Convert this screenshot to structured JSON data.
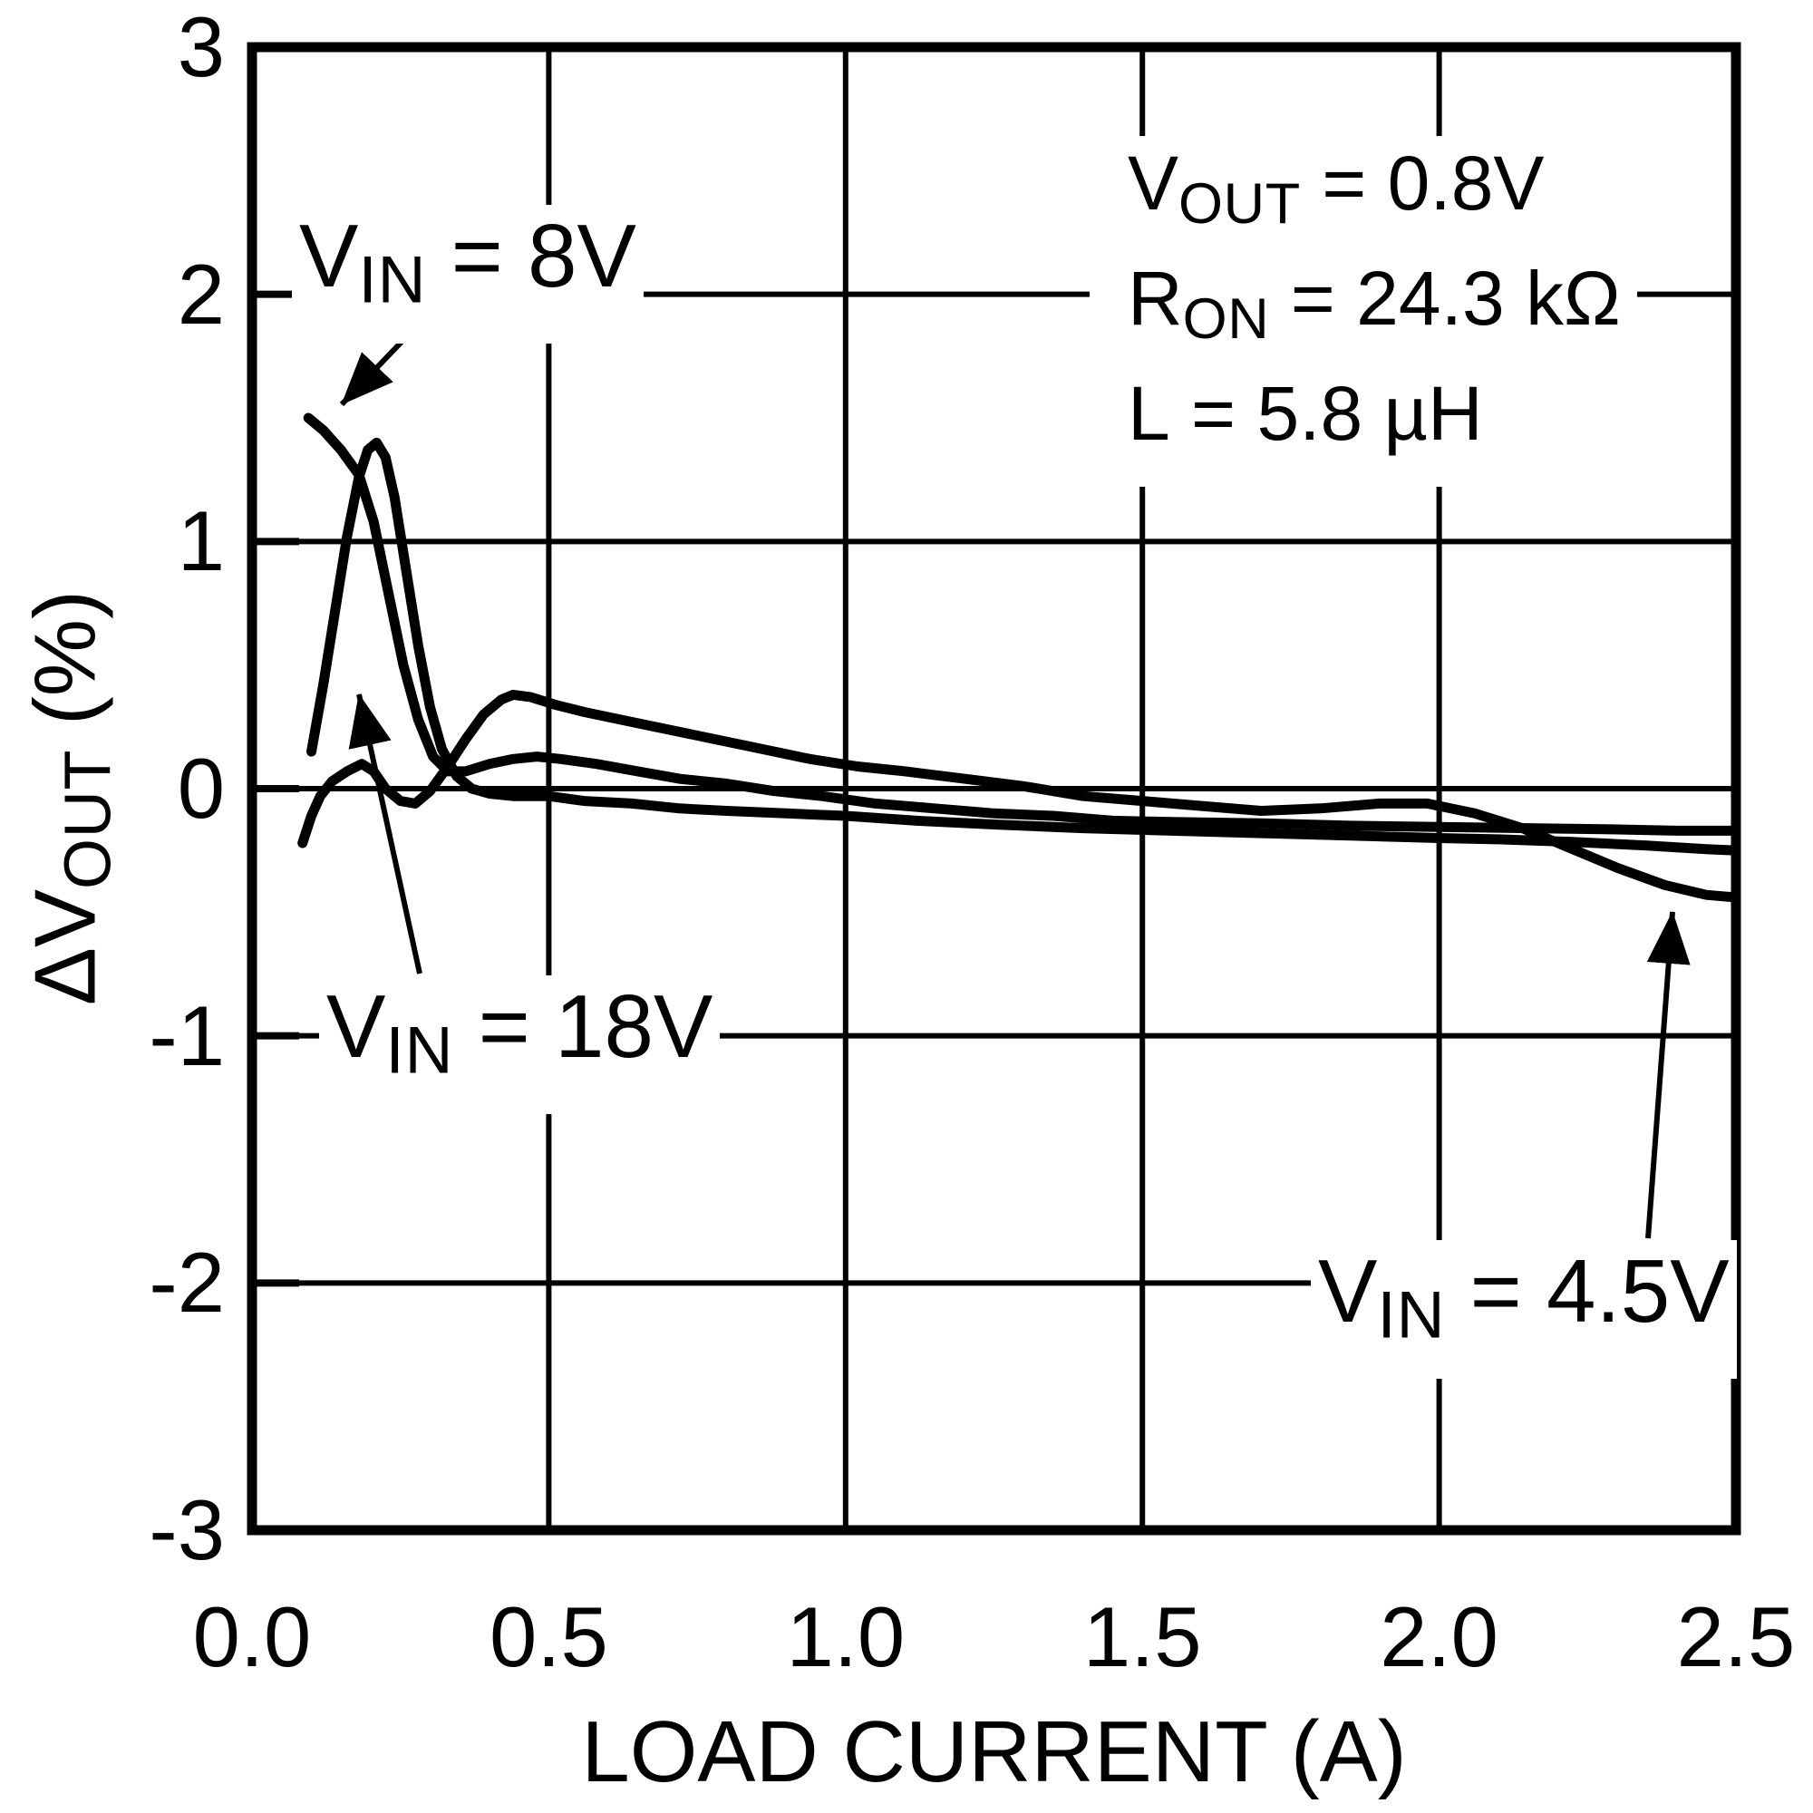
{
  "chart_data": {
    "type": "line",
    "title": "",
    "xlabel": "LOAD CURRENT (A)",
    "ylabel_parts": {
      "base": "ΔV",
      "sub": "OUT",
      "rest": " (%)"
    },
    "xlim": [
      0,
      2.5
    ],
    "ylim": [
      -3,
      3
    ],
    "xticks": [
      "0.0",
      "0.5",
      "1.0",
      "1.5",
      "2.0",
      "2.5"
    ],
    "yticks": [
      "3",
      "2",
      "1",
      "0",
      "-1",
      "-2",
      "-3"
    ],
    "grid": true,
    "legend_position": "none",
    "line_color": "#000000",
    "series": [
      {
        "id": "vin-8v",
        "name": "VIN = 8V",
        "points": [
          [
            0.095,
            1.5
          ],
          [
            0.12,
            1.45
          ],
          [
            0.15,
            1.37
          ],
          [
            0.18,
            1.27
          ],
          [
            0.205,
            1.08
          ],
          [
            0.23,
            0.79
          ],
          [
            0.255,
            0.5
          ],
          [
            0.28,
            0.28
          ],
          [
            0.305,
            0.13
          ],
          [
            0.33,
            0.07
          ],
          [
            0.36,
            0.07
          ],
          [
            0.4,
            0.1
          ],
          [
            0.44,
            0.12
          ],
          [
            0.48,
            0.13
          ],
          [
            0.52,
            0.12
          ],
          [
            0.58,
            0.1
          ],
          [
            0.65,
            0.07
          ],
          [
            0.72,
            0.04
          ],
          [
            0.8,
            0.02
          ],
          [
            0.88,
            -0.01
          ],
          [
            0.96,
            -0.03
          ],
          [
            1.05,
            -0.06
          ],
          [
            1.15,
            -0.08
          ],
          [
            1.25,
            -0.1
          ],
          [
            1.35,
            -0.11
          ],
          [
            1.45,
            -0.13
          ],
          [
            1.55,
            -0.135
          ],
          [
            1.7,
            -0.14
          ],
          [
            1.85,
            -0.15
          ],
          [
            2.0,
            -0.155
          ],
          [
            2.15,
            -0.16
          ],
          [
            2.3,
            -0.165
          ],
          [
            2.4,
            -0.17
          ],
          [
            2.5,
            -0.17
          ]
        ]
      },
      {
        "id": "vin-18v",
        "name": "VIN = 18V",
        "points": [
          [
            0.1,
            0.15
          ],
          [
            0.12,
            0.42
          ],
          [
            0.14,
            0.72
          ],
          [
            0.16,
            1.02
          ],
          [
            0.18,
            1.26
          ],
          [
            0.195,
            1.37
          ],
          [
            0.21,
            1.4
          ],
          [
            0.225,
            1.34
          ],
          [
            0.24,
            1.18
          ],
          [
            0.26,
            0.88
          ],
          [
            0.28,
            0.58
          ],
          [
            0.3,
            0.33
          ],
          [
            0.32,
            0.16
          ],
          [
            0.345,
            0.05
          ],
          [
            0.37,
            0.0
          ],
          [
            0.4,
            -0.02
          ],
          [
            0.44,
            -0.03
          ],
          [
            0.5,
            -0.03
          ],
          [
            0.56,
            -0.05
          ],
          [
            0.64,
            -0.06
          ],
          [
            0.72,
            -0.08
          ],
          [
            0.8,
            -0.09
          ],
          [
            0.9,
            -0.1
          ],
          [
            1.0,
            -0.11
          ],
          [
            1.12,
            -0.13
          ],
          [
            1.25,
            -0.145
          ],
          [
            1.4,
            -0.16
          ],
          [
            1.55,
            -0.17
          ],
          [
            1.7,
            -0.18
          ],
          [
            1.85,
            -0.19
          ],
          [
            2.0,
            -0.2
          ],
          [
            2.1,
            -0.205
          ],
          [
            2.22,
            -0.215
          ],
          [
            2.35,
            -0.23
          ],
          [
            2.45,
            -0.245
          ],
          [
            2.5,
            -0.25
          ]
        ]
      },
      {
        "id": "vin-4-5v",
        "name": "VIN = 4.5V",
        "points": [
          [
            0.085,
            -0.22
          ],
          [
            0.1,
            -0.11
          ],
          [
            0.115,
            -0.03
          ],
          [
            0.135,
            0.03
          ],
          [
            0.16,
            0.07
          ],
          [
            0.185,
            0.1
          ],
          [
            0.205,
            0.07
          ],
          [
            0.225,
            0.0
          ],
          [
            0.25,
            -0.05
          ],
          [
            0.275,
            -0.06
          ],
          [
            0.3,
            -0.01
          ],
          [
            0.33,
            0.09
          ],
          [
            0.36,
            0.2
          ],
          [
            0.39,
            0.3
          ],
          [
            0.42,
            0.36
          ],
          [
            0.44,
            0.38
          ],
          [
            0.47,
            0.37
          ],
          [
            0.51,
            0.34
          ],
          [
            0.56,
            0.31
          ],
          [
            0.62,
            0.28
          ],
          [
            0.7,
            0.24
          ],
          [
            0.78,
            0.2
          ],
          [
            0.86,
            0.16
          ],
          [
            0.94,
            0.12
          ],
          [
            1.02,
            0.09
          ],
          [
            1.1,
            0.07
          ],
          [
            1.2,
            0.04
          ],
          [
            1.3,
            0.01
          ],
          [
            1.4,
            -0.03
          ],
          [
            1.5,
            -0.05
          ],
          [
            1.6,
            -0.07
          ],
          [
            1.7,
            -0.09
          ],
          [
            1.8,
            -0.08
          ],
          [
            1.9,
            -0.06
          ],
          [
            1.98,
            -0.06
          ],
          [
            2.06,
            -0.1
          ],
          [
            2.14,
            -0.16
          ],
          [
            2.22,
            -0.24
          ],
          [
            2.3,
            -0.32
          ],
          [
            2.38,
            -0.39
          ],
          [
            2.45,
            -0.43
          ],
          [
            2.5,
            -0.44
          ]
        ]
      }
    ],
    "curve_labels": [
      {
        "base": "V",
        "sub": "IN",
        "rest": " = 8V"
      },
      {
        "base": "V",
        "sub": "IN",
        "rest": " = 18V"
      },
      {
        "base": "V",
        "sub": "IN",
        "rest": " = 4.5V"
      }
    ],
    "conditions": [
      {
        "base": "V",
        "sub": "OUT",
        "rest": " = 0.8V"
      },
      {
        "base": "R",
        "sub": "ON",
        "rest": " = 24.3 kΩ"
      },
      {
        "base": "L",
        "sub": "",
        "rest": " = 5.8 µH"
      }
    ]
  }
}
